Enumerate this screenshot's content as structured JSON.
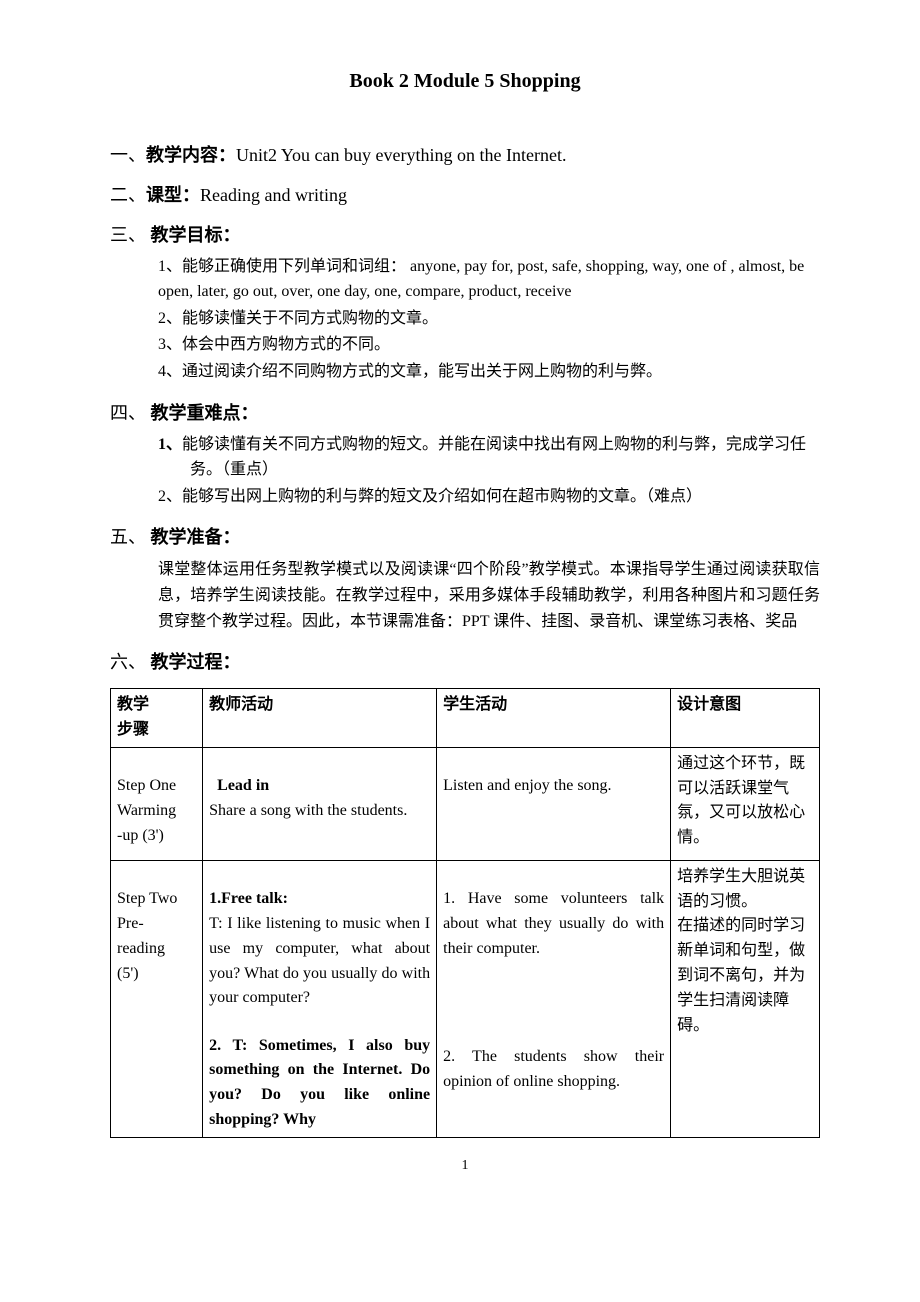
{
  "title": "Book 2 Module 5 Shopping",
  "sections": {
    "s1": {
      "num": "一、",
      "label": "教学内容：",
      "text": "Unit2 You can buy everything on the Internet."
    },
    "s2": {
      "num": "二、",
      "label": "课型：",
      "text": "Reading and writing"
    },
    "s3": {
      "num": "三、",
      "label": "教学目标：",
      "items": [
        "1、能够正确使用下列单词和词组：  anyone, pay for, post, safe, shopping, way, one of , almost, be open, later, go out, over, one day, one, compare, product, receive",
        "2、能够读懂关于不同方式购物的文章。",
        "3、体会中西方购物方式的不同。",
        "4、通过阅读介绍不同购物方式的文章，能写出关于网上购物的利与弊。"
      ]
    },
    "s4": {
      "num": "四、",
      "label": "教学重难点：",
      "items": [
        {
          "num": "1、",
          "text": "能够读懂有关不同方式购物的短文。并能在阅读中找出有网上购物的利与弊，完成学习任务。（重点）",
          "bold_num": true
        },
        {
          "num": "2、",
          "text": "能够写出网上购物的利与弊的短文及介绍如何在超市购物的文章。（难点）",
          "bold_num": false
        }
      ]
    },
    "s5": {
      "num": "五、",
      "label": "教学准备：",
      "para": "课堂整体运用任务型教学模式以及阅读课“四个阶段”教学模式。本课指导学生通过阅读获取信息，培养学生阅读技能。在教学过程中，采用多媒体手段辅助教学，利用各种图片和习题任务贯穿整个教学过程。因此，本节课需准备：PPT 课件、挂图、录音机、课堂练习表格、奖品"
    },
    "s6": {
      "num": "六、",
      "label": "教学过程："
    }
  },
  "table": {
    "headers": {
      "step": "教学\n步骤",
      "teacher": "教师活动",
      "student": "学生活动",
      "intent": "设计意图"
    },
    "rows": [
      {
        "step": {
          "line1": "Step One",
          "line2": "Warming",
          "line3": "-up (3')"
        },
        "teacher_lead_label": "Lead in",
        "teacher_lead_text": "Share a song with the students.",
        "student": "Listen and enjoy the song.",
        "intent": "通过这个环节，既可以活跃课堂气氛，又可以放松心情。"
      },
      {
        "step": {
          "line1": "Step Two",
          "line2": "Pre-",
          "line3": "reading",
          "line4": "(5')"
        },
        "teacher_ft_label": "1.Free talk:",
        "teacher_ft_text": "T: I like listening to music when I use my computer, what about you? What do you usually do with your computer?",
        "teacher_p2_label": "2. T: Sometimes, I also buy something on the Internet. Do you? Do you like online shopping? Why",
        "student_p1": "1. Have some volunteers talk about what they usually do with their computer.",
        "student_p2": "2. The students show their opinion of online shopping.",
        "intent": "培养学生大胆说英语的习惯。\n在描述的同时学习新单词和句型，做到词不离句，并为学生扫清阅读障碍。"
      }
    ]
  },
  "pagenum": "1",
  "colors": {
    "text": "#000000",
    "background": "#ffffff",
    "border": "#000000"
  }
}
